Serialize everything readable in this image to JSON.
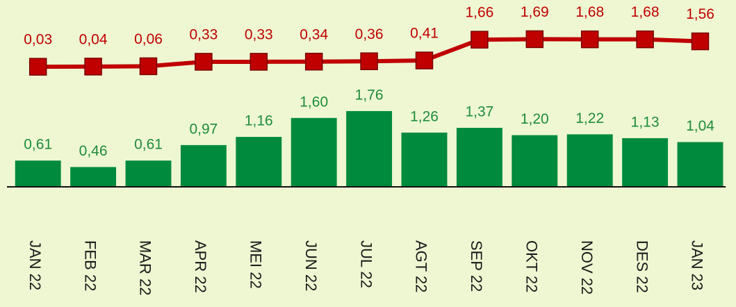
{
  "chart_data": {
    "type": "bar",
    "categories": [
      "JAN 22",
      "FEB 22",
      "MAR 22",
      "APR 22",
      "MEI 22",
      "JUN 22",
      "JUL 22",
      "AGT 22",
      "SEP 22",
      "OKT 22",
      "NOV 22",
      "DES 22",
      "JAN 23"
    ],
    "series": [
      {
        "type": "bar",
        "color": "#008a3e",
        "label_color": "#1f8c3b",
        "values": [
          0.61,
          0.46,
          0.61,
          0.97,
          1.16,
          1.6,
          1.76,
          1.26,
          1.37,
          1.2,
          1.22,
          1.13,
          1.04
        ],
        "value_labels": [
          "0,61",
          "0,46",
          "0,61",
          "0,97",
          "1,16",
          "1,60",
          "1,76",
          "1,26",
          "1,37",
          "1,20",
          "1,22",
          "1,13",
          "1,04"
        ]
      },
      {
        "type": "line",
        "axis": "y2",
        "color": "#c00000",
        "label_color": "#c00000",
        "values": [
          0.03,
          0.04,
          0.06,
          0.33,
          0.33,
          0.34,
          0.36,
          0.41,
          1.66,
          1.69,
          1.68,
          1.68,
          1.56
        ],
        "value_labels": [
          "0,03",
          "0,04",
          "0,06",
          "0,33",
          "0,33",
          "0,34",
          "0,36",
          "0,41",
          "1,66",
          "1,69",
          "1,68",
          "1,68",
          "1,56"
        ]
      }
    ],
    "ylim": [
      0,
      4.34
    ],
    "y2lim": [
      -7.2,
      4.05
    ]
  }
}
